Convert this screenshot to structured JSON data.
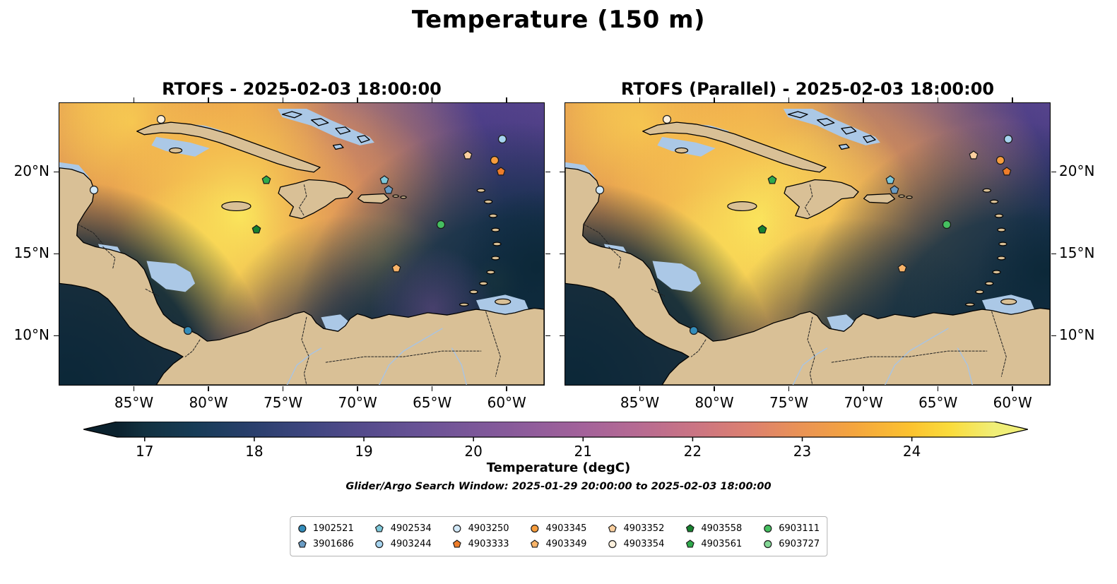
{
  "chart_data": {
    "type": "heatmap",
    "title": "Temperature (150 m)",
    "subtitle": "Glider/Argo Search Window: 2025-01-29 20:00:00 to 2025-02-03 18:00:00",
    "panels": [
      {
        "title": "RTOFS - 2025-02-03 18:00:00",
        "model": "RTOFS",
        "valid_time": "2025-02-03 18:00:00",
        "field_blobs": [
          [
            0.85,
            0.08,
            0.6,
            [
              [
                0,
                "rgba(79,64,140,0.95)"
              ],
              [
                0.6,
                "rgba(101,76,150,0.55)"
              ],
              [
                1,
                "rgba(101,76,150,0)"
              ]
            ]
          ],
          [
            1.02,
            0.42,
            0.34,
            [
              [
                0,
                "rgba(56,50,118,0.9)"
              ],
              [
                1,
                "rgba(56,50,118,0)"
              ]
            ]
          ],
          [
            0.7,
            0.2,
            0.12,
            [
              [
                0,
                "rgba(88,64,138,0.6)"
              ],
              [
                1,
                "rgba(88,64,138,0)"
              ]
            ]
          ],
          [
            0.52,
            0.16,
            0.15,
            [
              [
                0,
                "rgba(168,104,158,0.5)"
              ],
              [
                1,
                "rgba(168,104,158,0)"
              ]
            ]
          ],
          [
            0.07,
            -0.02,
            0.52,
            [
              [
                0,
                "rgba(243,168,74,0.95)"
              ],
              [
                0.5,
                "rgba(240,155,70,0.75)"
              ],
              [
                1,
                "rgba(240,155,70,0)"
              ]
            ]
          ],
          [
            0.38,
            0.0,
            0.18,
            [
              [
                0,
                "rgba(245,190,80,0.8)"
              ],
              [
                1,
                "rgba(245,190,80,0)"
              ]
            ]
          ],
          [
            0.15,
            0.07,
            0.2,
            [
              [
                0,
                "rgba(251,228,88,0.95)"
              ],
              [
                1,
                "rgba(251,228,88,0)"
              ]
            ]
          ],
          [
            0.42,
            0.43,
            0.5,
            [
              [
                0,
                "rgba(241,160,72,0.9)"
              ],
              [
                0.55,
                "rgba(241,160,72,0.55)"
              ],
              [
                1,
                "rgba(241,160,72,0)"
              ]
            ]
          ],
          [
            0.37,
            0.4,
            0.27,
            [
              [
                0,
                "rgba(252,235,95,0.95)"
              ],
              [
                0.5,
                "rgba(249,205,82,0.7)"
              ],
              [
                1,
                "rgba(249,205,82,0)"
              ]
            ]
          ],
          [
            0.28,
            0.56,
            0.17,
            [
              [
                0,
                "rgba(250,222,86,0.9)"
              ],
              [
                1,
                "rgba(250,222,86,0)"
              ]
            ]
          ],
          [
            0.6,
            0.35,
            0.2,
            [
              [
                0,
                "rgba(235,150,85,0.55)"
              ],
              [
                1,
                "rgba(235,150,85,0)"
              ]
            ]
          ],
          [
            0.67,
            0.55,
            0.11,
            [
              [
                0,
                "rgba(246,195,95,0.75)"
              ],
              [
                1,
                "rgba(246,195,95,0)"
              ]
            ]
          ],
          [
            0.905,
            0.64,
            0.055,
            [
              [
                0,
                "rgba(250,225,110,0.9)"
              ],
              [
                1,
                "rgba(250,225,110,0)"
              ]
            ]
          ],
          [
            0.93,
            0.84,
            0.45,
            [
              [
                0,
                "rgba(12,41,57,1)"
              ],
              [
                0.55,
                "rgba(15,48,68,0.85)"
              ],
              [
                1,
                "rgba(15,48,68,0)"
              ]
            ]
          ],
          [
            0.985,
            0.58,
            0.16,
            [
              [
                0,
                "rgba(12,40,56,0.95)"
              ],
              [
                1,
                "rgba(12,40,56,0)"
              ]
            ]
          ],
          [
            0.6,
            0.88,
            0.28,
            [
              [
                0,
                "rgba(15,44,62,0.95)"
              ],
              [
                1,
                "rgba(15,44,62,0)"
              ]
            ]
          ],
          [
            0.47,
            0.94,
            0.1,
            [
              [
                0,
                "rgba(14,44,62,0.9)"
              ],
              [
                1,
                "rgba(14,44,62,0)"
              ]
            ]
          ],
          [
            0.77,
            0.73,
            0.13,
            [
              [
                0,
                "rgba(120,80,150,0.5)"
              ],
              [
                1,
                "rgba(120,80,150,0)"
              ]
            ]
          ],
          [
            0.02,
            1.0,
            0.42,
            [
              [
                0,
                "rgba(12,40,56,1)"
              ],
              [
                0.65,
                "rgba(12,40,56,0.92)"
              ],
              [
                1,
                "rgba(12,40,56,0)"
              ]
            ]
          ]
        ]
      },
      {
        "title": "RTOFS (Parallel) - 2025-02-03 18:00:00",
        "model": "RTOFS (Parallel)",
        "valid_time": "2025-02-03 18:00:00",
        "field_blobs": [
          [
            0.85,
            0.1,
            0.62,
            [
              [
                0,
                "rgba(79,64,140,0.95)"
              ],
              [
                0.6,
                "rgba(104,78,152,0.6)"
              ],
              [
                1,
                "rgba(104,78,152,0)"
              ]
            ]
          ],
          [
            1.0,
            0.35,
            0.3,
            [
              [
                0,
                "rgba(58,52,120,0.85)"
              ],
              [
                1,
                "rgba(58,52,120,0)"
              ]
            ]
          ],
          [
            0.88,
            0.23,
            0.12,
            [
              [
                0,
                "rgba(160,100,160,0.45)"
              ],
              [
                1,
                "rgba(160,100,160,0)"
              ]
            ]
          ],
          [
            0.07,
            -0.02,
            0.52,
            [
              [
                0,
                "rgba(243,168,74,0.95)"
              ],
              [
                0.5,
                "rgba(240,155,70,0.75)"
              ],
              [
                1,
                "rgba(240,155,70,0)"
              ]
            ]
          ],
          [
            0.38,
            0.0,
            0.18,
            [
              [
                0,
                "rgba(245,190,80,0.8)"
              ],
              [
                1,
                "rgba(245,190,80,0)"
              ]
            ]
          ],
          [
            0.16,
            0.08,
            0.2,
            [
              [
                0,
                "rgba(251,228,88,0.95)"
              ],
              [
                1,
                "rgba(251,228,88,0)"
              ]
            ]
          ],
          [
            0.46,
            0.45,
            0.55,
            [
              [
                0,
                "rgba(242,162,72,0.95)"
              ],
              [
                0.55,
                "rgba(242,162,72,0.6)"
              ],
              [
                1,
                "rgba(242,162,72,0)"
              ]
            ]
          ],
          [
            0.4,
            0.42,
            0.32,
            [
              [
                0,
                "rgba(252,235,95,0.95)"
              ],
              [
                0.5,
                "rgba(249,205,82,0.7)"
              ],
              [
                1,
                "rgba(249,205,82,0)"
              ]
            ]
          ],
          [
            0.54,
            0.4,
            0.2,
            [
              [
                0,
                "rgba(250,222,90,0.75)"
              ],
              [
                1,
                "rgba(250,222,90,0)"
              ]
            ]
          ],
          [
            0.3,
            0.58,
            0.16,
            [
              [
                0,
                "rgba(250,222,86,0.85)"
              ],
              [
                1,
                "rgba(250,222,86,0)"
              ]
            ]
          ],
          [
            0.68,
            0.5,
            0.28,
            [
              [
                0,
                "rgba(238,155,80,0.6)"
              ],
              [
                1,
                "rgba(238,155,80,0)"
              ]
            ]
          ],
          [
            0.92,
            0.84,
            0.45,
            [
              [
                0,
                "rgba(12,41,57,1)"
              ],
              [
                0.55,
                "rgba(15,48,68,0.85)"
              ],
              [
                1,
                "rgba(15,48,68,0)"
              ]
            ]
          ],
          [
            0.99,
            0.6,
            0.14,
            [
              [
                0,
                "rgba(12,40,56,0.95)"
              ],
              [
                1,
                "rgba(12,40,56,0)"
              ]
            ]
          ],
          [
            0.6,
            0.89,
            0.28,
            [
              [
                0,
                "rgba(15,44,62,0.95)"
              ],
              [
                1,
                "rgba(15,44,62,0)"
              ]
            ]
          ],
          [
            0.02,
            1.0,
            0.42,
            [
              [
                0,
                "rgba(12,40,56,1)"
              ],
              [
                0.65,
                "rgba(12,40,56,0.92)"
              ],
              [
                1,
                "rgba(12,40,56,0)"
              ]
            ]
          ]
        ]
      }
    ],
    "map": {
      "lon_min": -90,
      "lon_max": -57.5,
      "lat_min": 7.0,
      "lat_max": 24.2,
      "lon_ticks": [
        {
          "value": -85,
          "label": "85°W"
        },
        {
          "value": -80,
          "label": "80°W"
        },
        {
          "value": -75,
          "label": "75°W"
        },
        {
          "value": -70,
          "label": "70°W"
        },
        {
          "value": -65,
          "label": "65°W"
        },
        {
          "value": -60,
          "label": "60°W"
        }
      ],
      "lat_ticks": [
        {
          "value": 20,
          "label": "20°N"
        },
        {
          "value": 15,
          "label": "15°N"
        },
        {
          "value": 10,
          "label": "10°N"
        }
      ]
    },
    "colorbar": {
      "label": "Temperature (degC)",
      "units": "degC",
      "min": 16.75,
      "max": 24.75,
      "extend": "both",
      "ticks": [
        17,
        18,
        19,
        20,
        21,
        22,
        23,
        24
      ],
      "stops": [
        [
          0,
          "#0b222e"
        ],
        [
          0.031,
          "#123140"
        ],
        [
          0.09,
          "#173c57"
        ],
        [
          0.156,
          "#2a3f6d"
        ],
        [
          0.22,
          "#3f4680"
        ],
        [
          0.281,
          "#554b8c"
        ],
        [
          0.34,
          "#675295"
        ],
        [
          0.406,
          "#7b5799"
        ],
        [
          0.47,
          "#8f5c9b"
        ],
        [
          0.531,
          "#a3629a"
        ],
        [
          0.59,
          "#b56a93"
        ],
        [
          0.656,
          "#ca7484"
        ],
        [
          0.72,
          "#dc8070"
        ],
        [
          0.781,
          "#ea9354"
        ],
        [
          0.84,
          "#f4a53e"
        ],
        [
          0.906,
          "#fcc32f"
        ],
        [
          0.95,
          "#fadc3c"
        ],
        [
          1,
          "#f0ee77"
        ]
      ]
    },
    "platforms": [
      {
        "id": "1902521",
        "shape": "circle",
        "color": "#338cba",
        "lon": -81.4,
        "lat": 10.3
      },
      {
        "id": "3901686",
        "shape": "pentagon",
        "color": "#6a9cc4",
        "lon": -67.9,
        "lat": 18.9
      },
      {
        "id": "4902534",
        "shape": "pentagon",
        "color": "#7ec8da",
        "lon": -68.2,
        "lat": 19.5
      },
      {
        "id": "4903244",
        "shape": "circle",
        "color": "#a6d4ef",
        "lon": -60.3,
        "lat": 22.0
      },
      {
        "id": "4903250",
        "shape": "circle",
        "color": "#d2e9f8",
        "lon": -87.7,
        "lat": 18.9
      },
      {
        "id": "4903333",
        "shape": "pentagon",
        "color": "#ee7d2a",
        "lon": -60.4,
        "lat": 20.0
      },
      {
        "id": "4903345",
        "shape": "circle",
        "color": "#f79d3d",
        "lon": -60.8,
        "lat": 20.7
      },
      {
        "id": "4903349",
        "shape": "pentagon",
        "color": "#f9b469",
        "lon": -67.4,
        "lat": 14.1
      },
      {
        "id": "4903352",
        "shape": "pentagon",
        "color": "#fbd09f",
        "lon": -62.6,
        "lat": 21.0
      },
      {
        "id": "4903354",
        "shape": "circle",
        "color": "#fdf0dd",
        "lon": -83.2,
        "lat": 23.2
      },
      {
        "id": "4903558",
        "shape": "pentagon",
        "color": "#17812f",
        "lon": -76.8,
        "lat": 16.5
      },
      {
        "id": "4903561",
        "shape": "pentagon",
        "color": "#2faa4c",
        "lon": -76.1,
        "lat": 19.5
      },
      {
        "id": "6903111",
        "shape": "circle",
        "color": "#45bf60",
        "lon": -64.4,
        "lat": 16.8
      },
      {
        "id": "6903727",
        "shape": "circle",
        "color": "#83d795",
        "lon": null,
        "lat": null
      }
    ]
  }
}
